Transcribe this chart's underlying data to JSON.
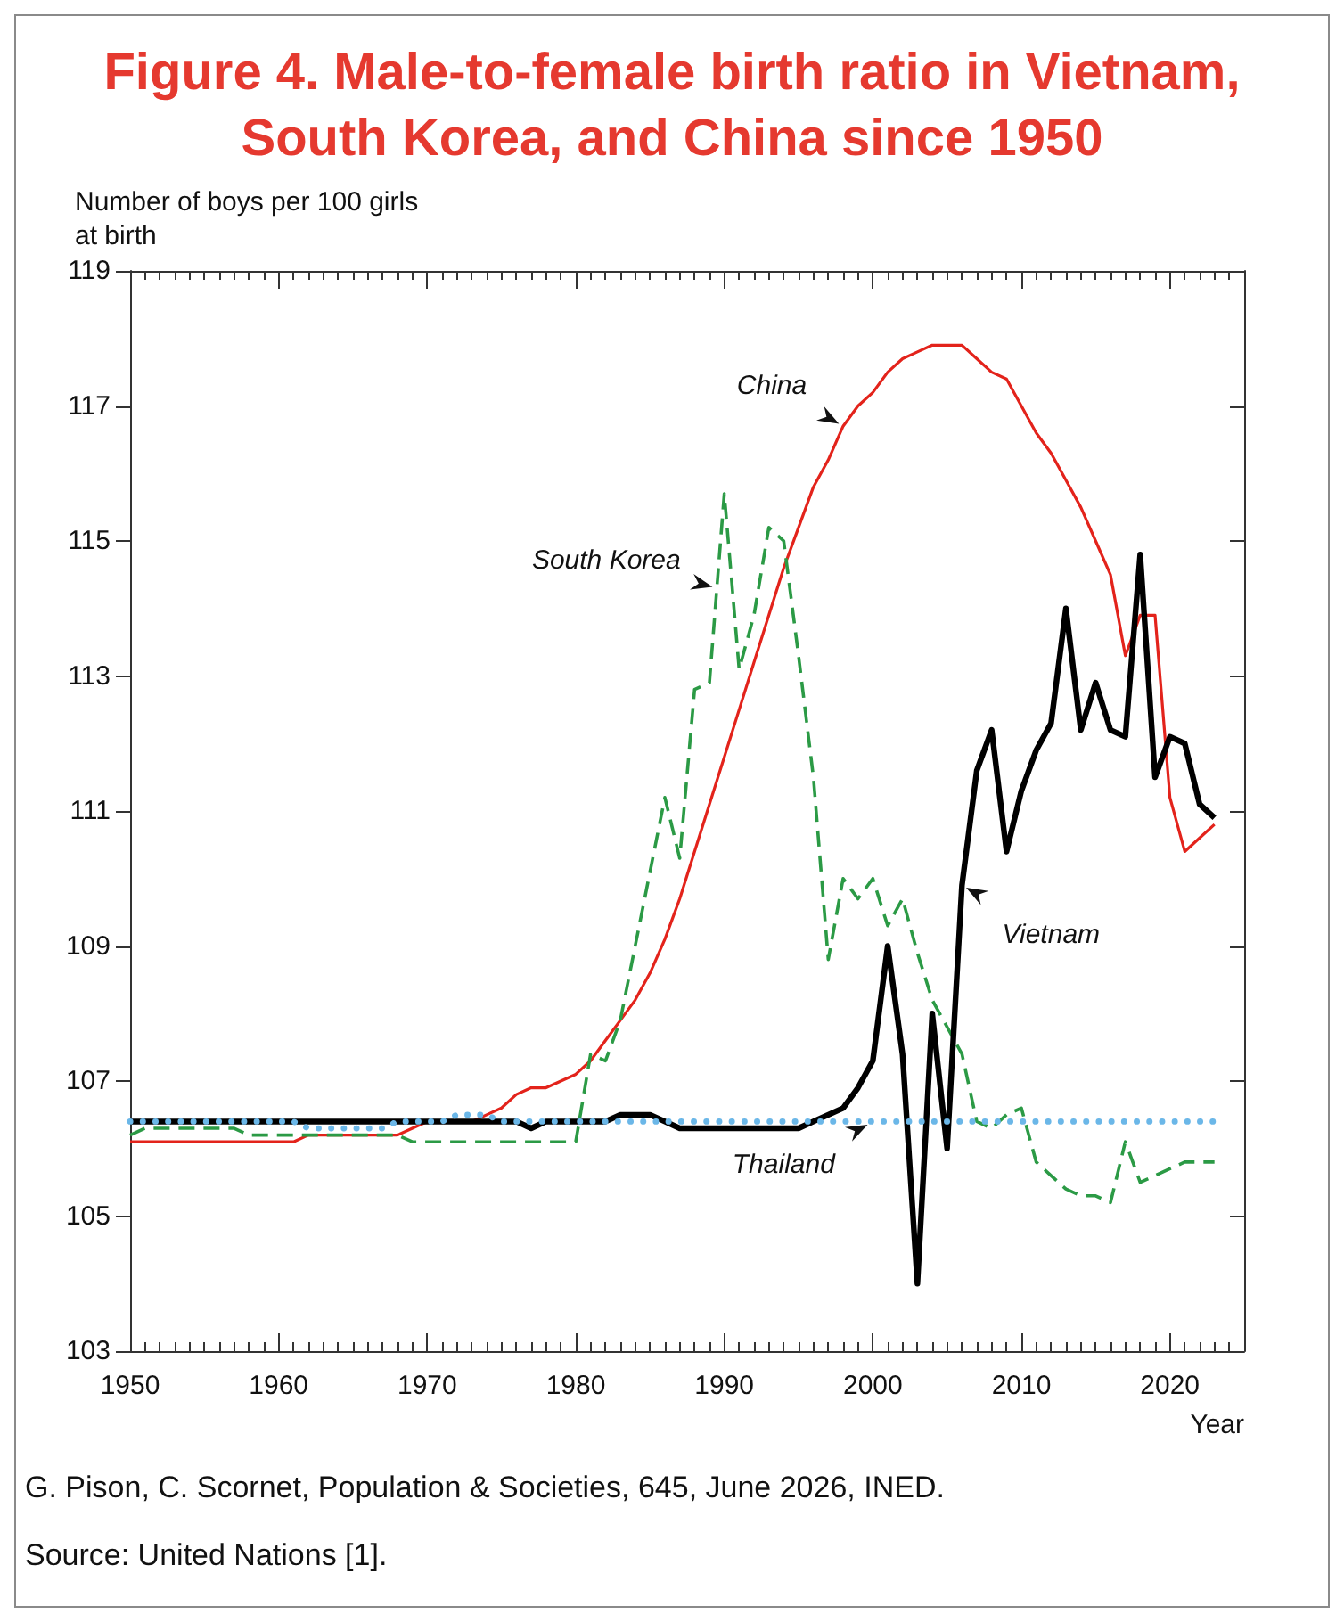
{
  "chart_data": {
    "type": "line",
    "title": "Figure 4. Male-to-female birth ratio in Vietnam, South Korea, and China since 1950",
    "ylabel": "Number of boys per 100 girls at birth",
    "xlabel": "Year",
    "annotations": [
      "G. Pison, C. Scornet, Population & Societies, 645, June 2026, INED.",
      "Source: United Nations [1]."
    ],
    "x": [
      1950,
      1951,
      1952,
      1953,
      1954,
      1955,
      1956,
      1957,
      1958,
      1959,
      1960,
      1961,
      1962,
      1963,
      1964,
      1965,
      1966,
      1967,
      1968,
      1969,
      1970,
      1971,
      1972,
      1973,
      1974,
      1975,
      1976,
      1977,
      1978,
      1979,
      1980,
      1981,
      1982,
      1983,
      1984,
      1985,
      1986,
      1987,
      1988,
      1989,
      1990,
      1991,
      1992,
      1993,
      1994,
      1995,
      1996,
      1997,
      1998,
      1999,
      2000,
      2001,
      2002,
      2003,
      2004,
      2005,
      2006,
      2007,
      2008,
      2009,
      2010,
      2011,
      2012,
      2013,
      2014,
      2015,
      2016,
      2017,
      2018,
      2019,
      2020,
      2021,
      2022,
      2023
    ],
    "series": [
      {
        "name": "China",
        "color": "#e3231b",
        "line_style": "solid",
        "values": [
          106.1,
          106.1,
          106.1,
          106.1,
          106.1,
          106.1,
          106.1,
          106.1,
          106.1,
          106.1,
          106.1,
          106.1,
          106.2,
          106.2,
          106.2,
          106.2,
          106.2,
          106.2,
          106.2,
          106.3,
          106.4,
          106.4,
          106.4,
          106.4,
          106.5,
          106.6,
          106.8,
          106.9,
          106.9,
          107.0,
          107.1,
          107.3,
          107.6,
          107.9,
          108.2,
          108.6,
          109.1,
          109.7,
          110.4,
          111.1,
          111.8,
          112.5,
          113.2,
          113.9,
          114.6,
          115.2,
          115.8,
          116.2,
          116.7,
          117.0,
          117.2,
          117.5,
          117.7,
          117.8,
          117.9,
          117.9,
          117.9,
          117.7,
          117.5,
          117.4,
          117.0,
          116.6,
          116.3,
          115.9,
          115.5,
          115.0,
          114.5,
          113.3,
          113.9,
          113.9,
          111.2,
          110.4,
          110.6,
          110.8
        ]
      },
      {
        "name": "South Korea",
        "color": "#2b9a45",
        "line_style": "dashed",
        "values": [
          106.2,
          106.3,
          106.3,
          106.3,
          106.3,
          106.3,
          106.3,
          106.3,
          106.2,
          106.2,
          106.2,
          106.2,
          106.2,
          106.2,
          106.2,
          106.2,
          106.2,
          106.2,
          106.2,
          106.1,
          106.1,
          106.1,
          106.1,
          106.1,
          106.1,
          106.1,
          106.1,
          106.1,
          106.1,
          106.1,
          106.1,
          107.4,
          107.3,
          107.9,
          109.0,
          110.1,
          111.2,
          110.3,
          112.8,
          112.9,
          115.7,
          113.1,
          113.9,
          115.2,
          115.0,
          113.3,
          111.5,
          108.8,
          110.0,
          109.7,
          110.0,
          109.3,
          109.7,
          108.9,
          108.2,
          107.8,
          107.4,
          106.4,
          106.3,
          106.5,
          106.6,
          105.8,
          105.6,
          105.4,
          105.3,
          105.3,
          105.2,
          106.1,
          105.5,
          105.6,
          105.7,
          105.8,
          105.8,
          105.8
        ]
      },
      {
        "name": "Vietnam",
        "color": "#000000",
        "line_style": "solid",
        "values": [
          106.4,
          106.4,
          106.4,
          106.4,
          106.4,
          106.4,
          106.4,
          106.4,
          106.4,
          106.4,
          106.4,
          106.4,
          106.4,
          106.4,
          106.4,
          106.4,
          106.4,
          106.4,
          106.4,
          106.4,
          106.4,
          106.4,
          106.4,
          106.4,
          106.4,
          106.4,
          106.4,
          106.3,
          106.4,
          106.4,
          106.4,
          106.4,
          106.4,
          106.5,
          106.5,
          106.5,
          106.4,
          106.3,
          106.3,
          106.3,
          106.3,
          106.3,
          106.3,
          106.3,
          106.3,
          106.3,
          106.4,
          106.5,
          106.6,
          106.9,
          107.3,
          109.0,
          107.4,
          104.0,
          108.0,
          106.0,
          109.9,
          111.6,
          112.2,
          110.4,
          111.3,
          111.9,
          112.3,
          114.0,
          112.2,
          112.9,
          112.2,
          112.1,
          114.8,
          111.5,
          112.1,
          112.0,
          111.1,
          110.9
        ]
      },
      {
        "name": "Thailand",
        "color": "#6bb7e8",
        "line_style": "dotted",
        "values": [
          106.4,
          106.4,
          106.4,
          106.4,
          106.4,
          106.4,
          106.4,
          106.4,
          106.4,
          106.4,
          106.4,
          106.4,
          106.3,
          106.3,
          106.3,
          106.3,
          106.3,
          106.3,
          106.4,
          106.4,
          106.4,
          106.4,
          106.5,
          106.5,
          106.5,
          106.4,
          106.4,
          106.4,
          106.4,
          106.4,
          106.4,
          106.4,
          106.4,
          106.4,
          106.4,
          106.4,
          106.4,
          106.4,
          106.4,
          106.4,
          106.4,
          106.4,
          106.4,
          106.4,
          106.4,
          106.4,
          106.4,
          106.4,
          106.4,
          106.4,
          106.4,
          106.4,
          106.4,
          106.4,
          106.4,
          106.4,
          106.4,
          106.4,
          106.4,
          106.4,
          106.4,
          106.4,
          106.4,
          106.4,
          106.4,
          106.4,
          106.4,
          106.4,
          106.4,
          106.4,
          106.4,
          106.4,
          106.4,
          106.4
        ]
      }
    ],
    "xlim": [
      1950,
      2025
    ],
    "ylim": [
      103,
      119
    ],
    "xticks": [
      1950,
      {
        "value": 1951,
        "label": null
      },
      {
        "value": 1952,
        "label": null
      },
      {
        "value": 1953,
        "label": null
      },
      {
        "value": 1954,
        "label": null
      },
      {
        "value": 1955,
        "label": null
      },
      {
        "value": 1956,
        "label": null
      },
      {
        "value": 1957,
        "label": null
      },
      {
        "value": 1958,
        "label": null
      },
      {
        "value": 1959,
        "label": null
      },
      1960,
      {
        "value": 1961,
        "label": null
      },
      {
        "value": 1962,
        "label": null
      },
      {
        "value": 1963,
        "label": null
      },
      {
        "value": 1964,
        "label": null
      },
      {
        "value": 1965,
        "label": null
      },
      {
        "value": 1966,
        "label": null
      },
      {
        "value": 1967,
        "label": null
      },
      {
        "value": 1968,
        "label": null
      },
      {
        "value": 1969,
        "label": null
      },
      1970,
      {
        "value": 1971,
        "label": null
      },
      {
        "value": 1972,
        "label": null
      },
      {
        "value": 1973,
        "label": null
      },
      {
        "value": 1974,
        "label": null
      },
      {
        "value": 1975,
        "label": null
      },
      {
        "value": 1976,
        "label": null
      },
      {
        "value": 1977,
        "label": null
      },
      {
        "value": 1978,
        "label": null
      },
      {
        "value": 1979,
        "label": null
      },
      1980,
      {
        "value": 1981,
        "label": null
      },
      {
        "value": 1982,
        "label": null
      },
      {
        "value": 1983,
        "label": null
      },
      {
        "value": 1984,
        "label": null
      },
      {
        "value": 1985,
        "label": null
      },
      {
        "value": 1986,
        "label": null
      },
      {
        "value": 1987,
        "label": null
      },
      {
        "value": 1988,
        "label": null
      },
      {
        "value": 1989,
        "label": null
      },
      1990,
      {
        "value": 1991,
        "label": null
      },
      {
        "value": 1992,
        "label": null
      },
      {
        "value": 1993,
        "label": null
      },
      {
        "value": 1994,
        "label": null
      },
      {
        "value": 1995,
        "label": null
      },
      {
        "value": 1996,
        "label": null
      },
      {
        "value": 1997,
        "label": null
      },
      {
        "value": 1998,
        "label": null
      },
      {
        "value": 1999,
        "label": null
      },
      2000,
      {
        "value": 2001,
        "label": null
      },
      {
        "value": 2002,
        "label": null
      },
      {
        "value": 2003,
        "label": null
      },
      {
        "value": 2004,
        "label": null
      },
      {
        "value": 2005,
        "label": null
      },
      {
        "value": 2006,
        "label": null
      },
      {
        "value": 2007,
        "label": null
      },
      {
        "value": 2008,
        "label": null
      },
      {
        "value": 2009,
        "label": null
      },
      2010,
      {
        "value": 2011,
        "label": null
      },
      {
        "value": 2012,
        "label": null
      },
      {
        "value": 2013,
        "label": null
      },
      {
        "value": 2014,
        "label": null
      },
      {
        "value": 2015,
        "label": null
      },
      {
        "value": 2016,
        "label": null
      },
      {
        "value": 2017,
        "label": null
      },
      {
        "value": 2018,
        "label": null
      },
      {
        "value": 2019,
        "label": null
      },
      2020,
      {
        "value": 2021,
        "label": null
      },
      {
        "value": 2022,
        "label": null
      },
      {
        "value": 2023,
        "label": null
      },
      {
        "value": 2024,
        "label": null
      }
    ],
    "yticks": [
      103,
      105,
      107,
      109,
      111,
      113,
      115,
      117,
      119
    ],
    "legend": false,
    "marker": "none"
  }
}
